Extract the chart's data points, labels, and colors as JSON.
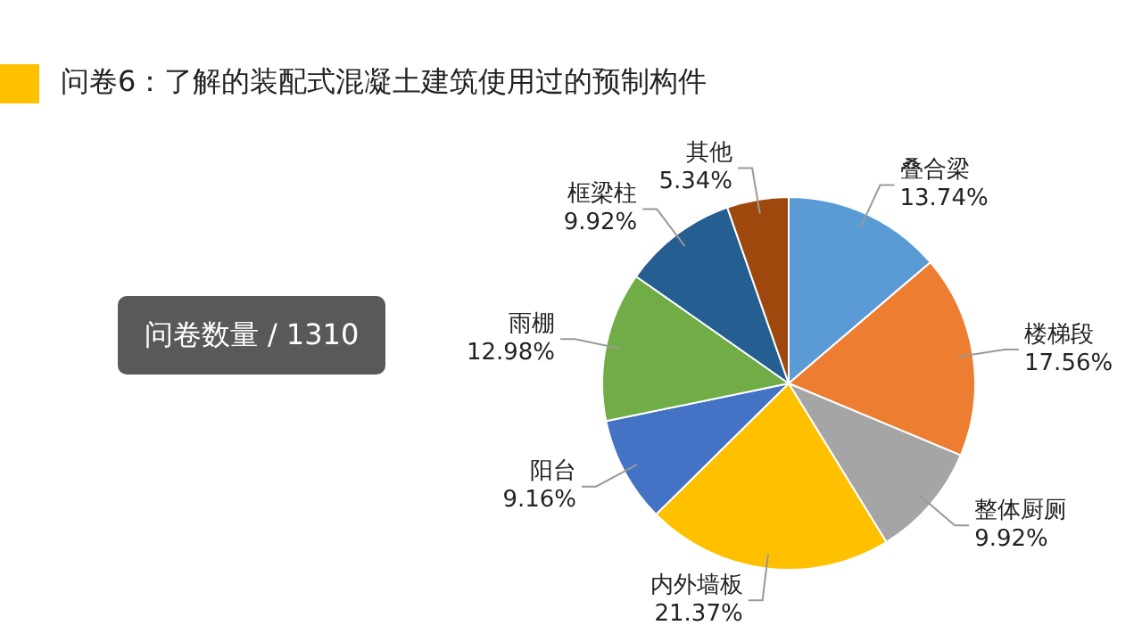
{
  "chart_data": {
    "type": "pie",
    "title": "问卷6：了解的装配式混凝土建筑使用过的预制构件",
    "categories": [
      "叠合梁",
      "楼梯段",
      "整体厨厕",
      "内外墙板",
      "阳台",
      "雨棚",
      "框梁柱",
      "其他"
    ],
    "values": [
      13.74,
      17.56,
      9.92,
      21.37,
      9.16,
      12.98,
      9.92,
      5.34
    ],
    "value_labels": [
      "13.74%",
      "17.56%",
      "9.92%",
      "21.37%",
      "9.16%",
      "12.98%",
      "9.92%",
      "5.34%"
    ],
    "colors": [
      "#5b9bd5",
      "#ed7d31",
      "#a5a5a5",
      "#ffc000",
      "#4472c4",
      "#70ad47",
      "#255e91",
      "#9e480e"
    ],
    "annotations": [
      "问卷数量 / 1310"
    ],
    "legend": false
  }
}
